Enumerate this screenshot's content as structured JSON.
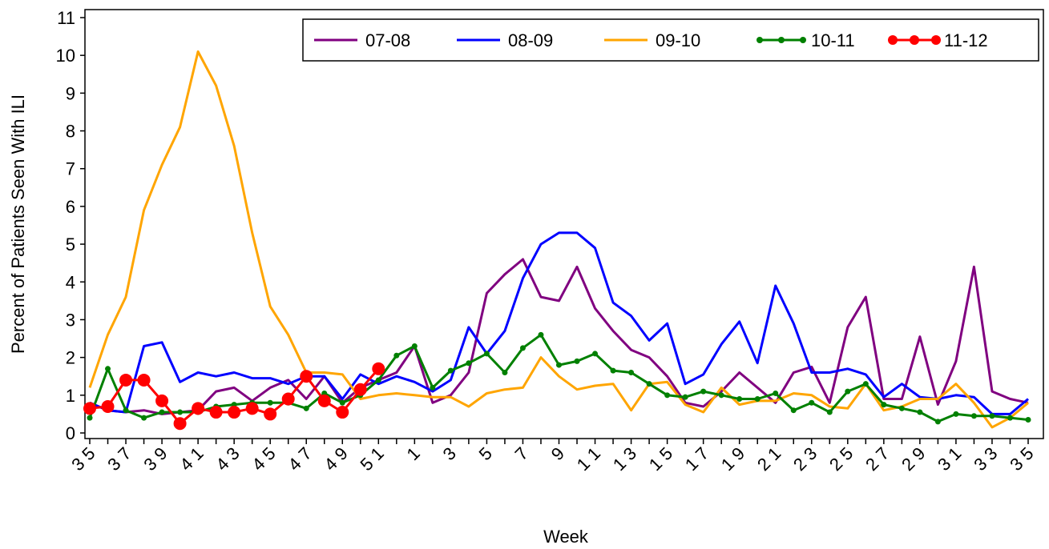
{
  "chart_data": {
    "type": "line",
    "title": "",
    "xlabel": "Week",
    "ylabel": "Percent of Patients Seen With ILI",
    "ylim": [
      0,
      11
    ],
    "yticks": [
      0,
      1,
      2,
      3,
      4,
      5,
      6,
      7,
      8,
      9,
      10,
      11
    ],
    "grid": false,
    "legend_position": "top-right",
    "x_weeks": [
      35,
      36,
      37,
      38,
      39,
      40,
      41,
      42,
      43,
      44,
      45,
      46,
      47,
      48,
      49,
      50,
      51,
      52,
      1,
      2,
      3,
      4,
      5,
      6,
      7,
      8,
      9,
      10,
      11,
      12,
      13,
      14,
      15,
      16,
      17,
      18,
      19,
      20,
      21,
      22,
      23,
      24,
      25,
      26,
      27,
      28,
      29,
      30,
      31,
      32,
      33,
      34,
      35
    ],
    "x_tick_labels": [
      "3 5",
      "3 7",
      "3 9",
      "4 1",
      "4 3",
      "4 5",
      "4 7",
      "4 9",
      "5 1",
      "1",
      "3",
      "5",
      "7",
      "9",
      "1 1",
      "1 3",
      "1 5",
      "1 7",
      "1 9",
      "2 1",
      "2 3",
      "2 5",
      "2 7",
      "2 9",
      "3 1",
      "3 3",
      "3 5"
    ],
    "series": [
      {
        "name": "07-08",
        "color": "#800080",
        "marker": "none",
        "values": [
          0.8,
          0.6,
          0.55,
          0.6,
          0.5,
          0.55,
          0.6,
          1.1,
          1.2,
          0.85,
          1.2,
          1.4,
          0.9,
          1.5,
          0.8,
          1.2,
          1.4,
          1.6,
          2.3,
          0.8,
          1.0,
          1.6,
          3.7,
          4.2,
          4.6,
          3.6,
          3.5,
          4.4,
          3.3,
          2.7,
          2.2,
          2.0,
          1.5,
          0.8,
          0.7,
          1.1,
          1.6,
          1.2,
          0.8,
          1.6,
          1.75,
          0.8,
          2.8,
          3.6,
          0.9,
          0.9,
          2.55,
          0.75,
          1.9,
          4.4,
          1.1,
          0.9,
          0.8
        ]
      },
      {
        "name": "08-09",
        "color": "#0000ff",
        "marker": "none",
        "values": [
          0.8,
          0.6,
          0.55,
          2.3,
          2.4,
          1.35,
          1.6,
          1.5,
          1.6,
          1.45,
          1.45,
          1.3,
          1.5,
          1.5,
          0.9,
          1.55,
          1.3,
          1.5,
          1.35,
          1.1,
          1.4,
          2.8,
          2.1,
          2.7,
          4.1,
          5.0,
          5.3,
          5.3,
          4.9,
          3.45,
          3.1,
          2.45,
          2.9,
          1.3,
          1.55,
          2.35,
          2.95,
          1.85,
          3.9,
          2.9,
          1.6,
          1.6,
          1.7,
          1.55,
          0.95,
          1.3,
          0.95,
          0.9,
          1.0,
          0.95,
          0.5,
          0.5,
          0.9
        ]
      },
      {
        "name": "09-10",
        "color": "#ffa500",
        "marker": "none",
        "values": [
          1.2,
          2.6,
          3.6,
          5.9,
          7.1,
          8.1,
          10.1,
          9.2,
          7.6,
          5.3,
          3.35,
          2.6,
          1.6,
          1.6,
          1.55,
          0.9,
          1.0,
          1.05,
          1.0,
          0.95,
          0.95,
          0.7,
          1.05,
          1.15,
          1.2,
          2.0,
          1.5,
          1.15,
          1.25,
          1.3,
          0.6,
          1.3,
          1.35,
          0.75,
          0.55,
          1.2,
          0.75,
          0.85,
          0.85,
          1.05,
          1.0,
          0.7,
          0.65,
          1.3,
          0.6,
          0.7,
          0.9,
          0.9,
          1.3,
          0.8,
          0.15,
          0.4,
          0.8
        ]
      },
      {
        "name": "10-11",
        "color": "#008000",
        "marker": "small-circle",
        "values": [
          0.4,
          1.7,
          0.6,
          0.4,
          0.55,
          0.55,
          0.55,
          0.7,
          0.75,
          0.8,
          0.8,
          0.8,
          0.65,
          1.05,
          0.8,
          1.0,
          1.4,
          2.05,
          2.3,
          1.2,
          1.65,
          1.85,
          2.1,
          1.6,
          2.25,
          2.6,
          1.8,
          1.9,
          2.1,
          1.65,
          1.6,
          1.3,
          1.0,
          0.95,
          1.1,
          1.0,
          0.9,
          0.9,
          1.05,
          0.6,
          0.8,
          0.55,
          1.1,
          1.3,
          0.75,
          0.65,
          0.55,
          0.3,
          0.5,
          0.45,
          0.45,
          0.4,
          0.35
        ]
      },
      {
        "name": "11-12",
        "color": "#ff0000",
        "marker": "large-circle",
        "values": [
          0.65,
          0.7,
          1.4,
          1.4,
          0.85,
          0.25,
          0.65,
          0.55,
          0.55,
          0.65,
          0.5,
          0.9,
          1.5,
          0.85,
          0.55,
          1.15,
          1.7
        ]
      }
    ]
  }
}
